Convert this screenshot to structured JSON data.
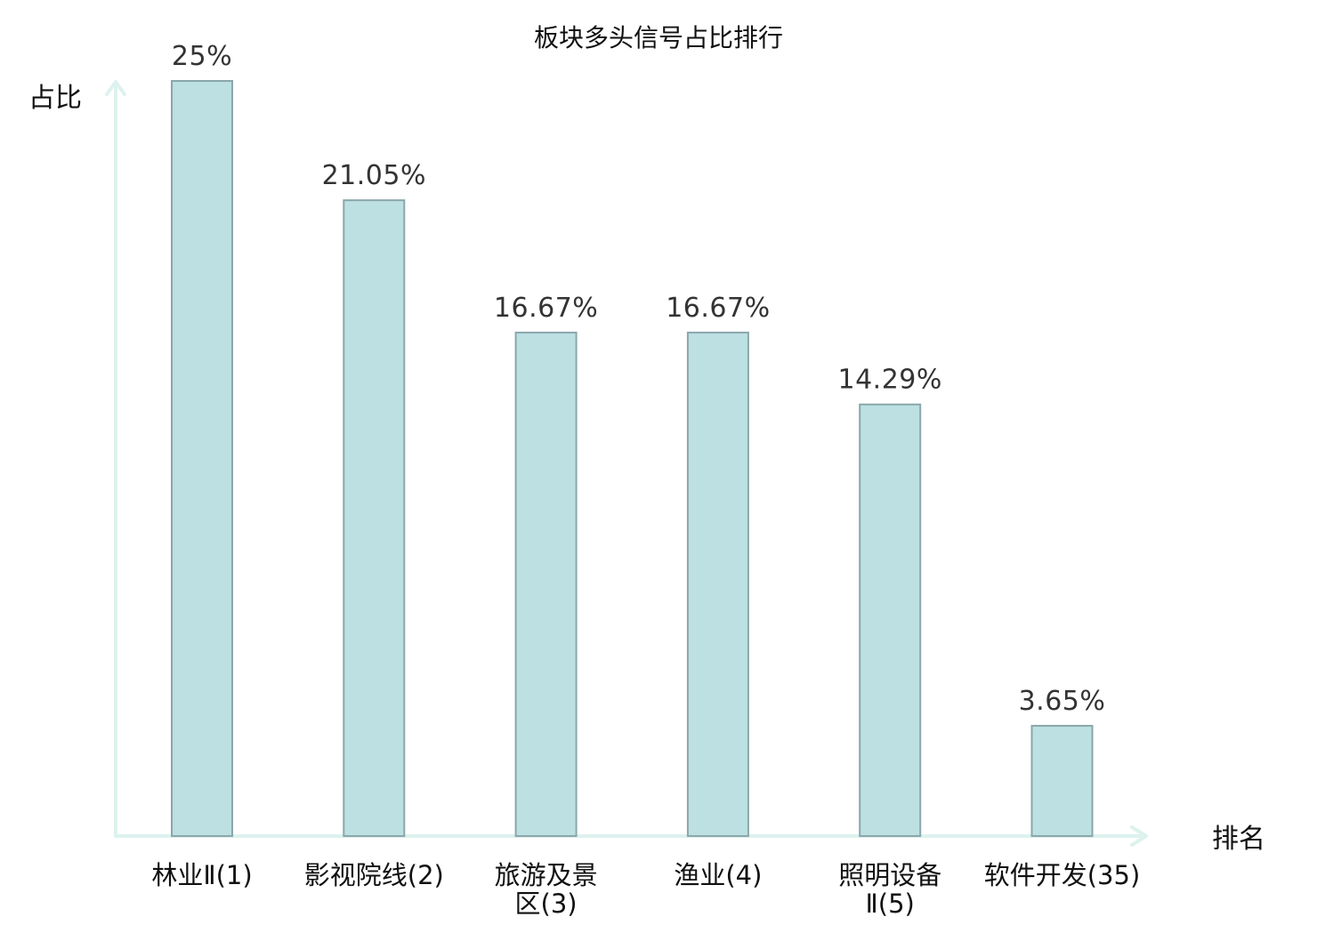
{
  "chart_data": {
    "type": "bar",
    "title": "板块多头信号占比排行",
    "ylabel": "占比",
    "xlabel": "排名",
    "ylim": [
      0,
      25
    ],
    "categories": [
      [
        "林业Ⅱ(1)"
      ],
      [
        "影视院线(2)"
      ],
      [
        "旅游及景",
        "区(3)"
      ],
      [
        "渔业(4)"
      ],
      [
        "照明设备",
        "Ⅱ(5)"
      ],
      [
        "软件开发(35)"
      ]
    ],
    "values": [
      25,
      21.05,
      16.67,
      16.67,
      14.29,
      3.65
    ],
    "value_labels": [
      "25%",
      "21.05%",
      "16.67%",
      "16.67%",
      "14.29%",
      "3.65%"
    ],
    "highlight_index": 5,
    "colors": {
      "bar_fill": "#bde0e2",
      "bar_stroke": "#8aa7ab",
      "axis": "#ddf2ee",
      "highlight_label": "#e8191c",
      "label": "#111111",
      "value_label": "#333333"
    }
  }
}
